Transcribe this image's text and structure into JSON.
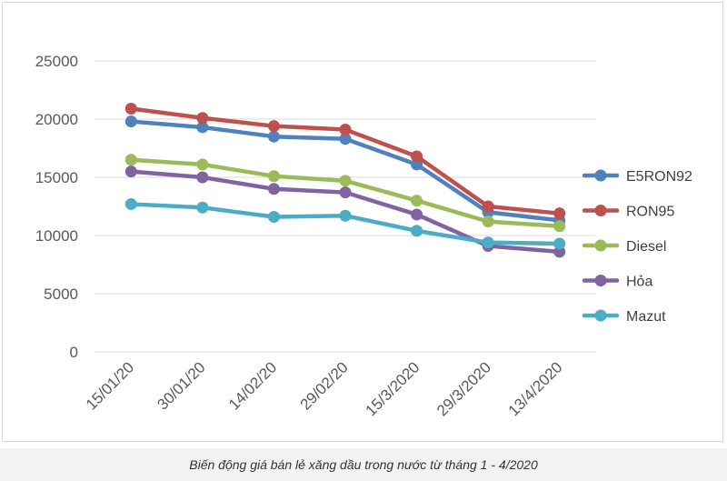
{
  "caption": "Biến động giá bán lẻ xăng dầu trong nước từ tháng 1 - 4/2020",
  "chart_data": {
    "type": "line",
    "title": "",
    "xlabel": "",
    "ylabel": "",
    "categories": [
      "15/01/20",
      "30/01/20",
      "14/02/20",
      "29/02/20",
      "15/3/2020",
      "29/3/2020",
      "13/4/2020"
    ],
    "ylim": [
      0,
      25000
    ],
    "yticks": [
      0,
      5000,
      10000,
      15000,
      20000,
      25000
    ],
    "grid": true,
    "legend_position": "right",
    "series": [
      {
        "name": "E5RON92",
        "color": "#4f81bd",
        "values": [
          19800,
          19300,
          18500,
          18300,
          16100,
          12000,
          11300
        ]
      },
      {
        "name": "RON95",
        "color": "#c0504d",
        "values": [
          20900,
          20100,
          19400,
          19100,
          16800,
          12500,
          11900
        ]
      },
      {
        "name": "Diesel",
        "color": "#9bbb59",
        "values": [
          16500,
          16100,
          15100,
          14700,
          13000,
          11200,
          10800
        ]
      },
      {
        "name": "Hỏa",
        "color": "#8064a2",
        "values": [
          15500,
          15000,
          14000,
          13700,
          11800,
          9100,
          8600
        ]
      },
      {
        "name": "Mazut",
        "color": "#4bacc6",
        "values": [
          12700,
          12400,
          11600,
          11700,
          10400,
          9400,
          9300
        ]
      }
    ]
  }
}
